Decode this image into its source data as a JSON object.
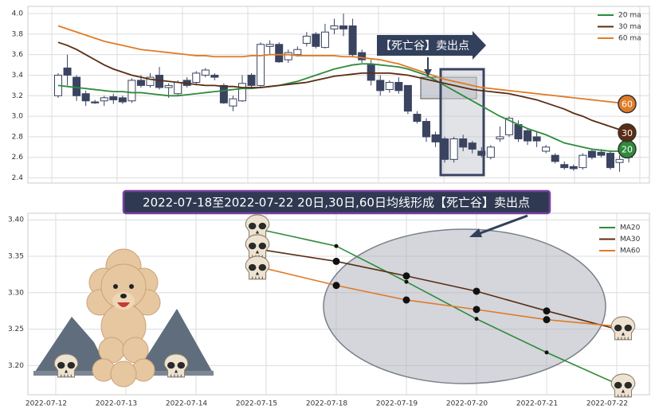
{
  "chart_data": [
    {
      "type": "candlestick",
      "open": [
        3.2,
        3.47,
        3.38,
        3.22,
        3.14,
        3.15,
        3.19,
        3.18,
        3.15,
        3.35,
        3.3,
        3.4,
        3.28,
        3.22,
        3.35,
        3.33,
        3.4,
        3.4,
        3.3,
        3.1,
        3.15,
        3.4,
        3.3,
        3.68,
        3.7,
        3.55,
        3.6,
        3.71,
        3.8,
        3.67,
        3.85,
        3.88,
        3.88,
        3.62,
        3.5,
        3.35,
        3.26,
        3.33,
        3.3,
        3.02,
        2.95,
        2.82,
        2.78,
        2.58,
        2.78,
        2.74,
        2.66,
        2.6,
        2.78,
        2.82,
        2.92,
        2.86,
        2.8,
        2.66,
        2.62,
        2.53,
        2.51,
        2.5,
        2.66,
        2.65,
        2.64,
        2.55,
        2.6
      ],
      "high": [
        3.42,
        3.6,
        3.4,
        3.25,
        3.16,
        3.2,
        3.22,
        3.2,
        3.37,
        3.4,
        3.42,
        3.48,
        3.32,
        3.35,
        3.38,
        3.44,
        3.47,
        3.42,
        3.32,
        3.2,
        3.4,
        3.42,
        3.72,
        3.74,
        3.72,
        3.65,
        3.68,
        3.82,
        3.82,
        3.9,
        3.95,
        4.0,
        3.95,
        3.65,
        3.55,
        3.4,
        3.35,
        3.38,
        3.3,
        3.05,
        2.98,
        2.85,
        2.8,
        2.8,
        2.82,
        2.76,
        2.7,
        2.72,
        2.9,
        3.0,
        2.96,
        2.88,
        2.85,
        2.72,
        2.64,
        2.56,
        2.53,
        2.64,
        2.68,
        2.68,
        2.66,
        2.62,
        2.72
      ],
      "low": [
        3.18,
        3.3,
        3.15,
        3.1,
        3.12,
        3.1,
        3.12,
        3.12,
        3.13,
        3.28,
        3.28,
        3.26,
        3.18,
        3.2,
        3.28,
        3.3,
        3.38,
        3.35,
        3.12,
        3.05,
        3.14,
        3.28,
        3.28,
        3.6,
        3.52,
        3.52,
        3.58,
        3.68,
        3.66,
        3.66,
        3.8,
        3.78,
        3.58,
        3.52,
        3.3,
        3.2,
        3.23,
        3.22,
        3.02,
        2.93,
        2.75,
        2.7,
        2.55,
        2.55,
        2.66,
        2.64,
        2.6,
        2.58,
        2.75,
        2.8,
        2.75,
        2.72,
        2.7,
        2.64,
        2.54,
        2.48,
        2.47,
        2.48,
        2.58,
        2.6,
        2.48,
        2.46,
        2.55
      ],
      "close": [
        3.4,
        3.4,
        3.2,
        3.15,
        3.13,
        3.18,
        3.16,
        3.14,
        3.35,
        3.3,
        3.38,
        3.28,
        3.3,
        3.33,
        3.3,
        3.42,
        3.45,
        3.38,
        3.13,
        3.17,
        3.32,
        3.3,
        3.7,
        3.7,
        3.53,
        3.62,
        3.65,
        3.78,
        3.68,
        3.82,
        3.88,
        3.85,
        3.6,
        3.55,
        3.35,
        3.25,
        3.33,
        3.25,
        3.05,
        2.95,
        2.8,
        2.75,
        2.58,
        2.78,
        2.7,
        2.68,
        2.62,
        2.7,
        2.8,
        2.98,
        2.78,
        2.76,
        2.76,
        2.7,
        2.56,
        2.5,
        2.49,
        2.62,
        2.6,
        2.62,
        2.5,
        2.58,
        2.7
      ],
      "series": [
        {
          "name": "20 ma",
          "badge": "20",
          "color": "#2e8b3a",
          "values": [
            3.3,
            3.29,
            3.28,
            3.27,
            3.26,
            3.25,
            3.24,
            3.24,
            3.23,
            3.23,
            3.22,
            3.21,
            3.2,
            3.2,
            3.21,
            3.22,
            3.23,
            3.24,
            3.25,
            3.26,
            3.27,
            3.27,
            3.28,
            3.29,
            3.3,
            3.32,
            3.34,
            3.37,
            3.4,
            3.43,
            3.46,
            3.48,
            3.5,
            3.51,
            3.51,
            3.5,
            3.49,
            3.48,
            3.46,
            3.43,
            3.4,
            3.35,
            3.3,
            3.25,
            3.2,
            3.15,
            3.1,
            3.05,
            3.0,
            2.96,
            2.92,
            2.88,
            2.85,
            2.82,
            2.78,
            2.74,
            2.72,
            2.7,
            2.68,
            2.67,
            2.66,
            2.66,
            2.68
          ]
        },
        {
          "name": "30 ma",
          "badge": "30",
          "color": "#5a2d14",
          "values": [
            3.72,
            3.69,
            3.65,
            3.6,
            3.55,
            3.5,
            3.46,
            3.43,
            3.4,
            3.38,
            3.36,
            3.35,
            3.34,
            3.33,
            3.32,
            3.31,
            3.3,
            3.3,
            3.29,
            3.29,
            3.28,
            3.28,
            3.28,
            3.29,
            3.3,
            3.31,
            3.32,
            3.33,
            3.35,
            3.37,
            3.39,
            3.4,
            3.41,
            3.42,
            3.42,
            3.42,
            3.42,
            3.41,
            3.4,
            3.38,
            3.36,
            3.34,
            3.32,
            3.3,
            3.28,
            3.26,
            3.25,
            3.24,
            3.23,
            3.22,
            3.2,
            3.18,
            3.16,
            3.13,
            3.1,
            3.07,
            3.03,
            3.0,
            2.96,
            2.93,
            2.9,
            2.87,
            2.84
          ]
        },
        {
          "name": "60 ma",
          "badge": "60",
          "color": "#e07b28",
          "values": [
            3.88,
            3.85,
            3.82,
            3.79,
            3.76,
            3.73,
            3.71,
            3.69,
            3.67,
            3.65,
            3.64,
            3.63,
            3.62,
            3.61,
            3.6,
            3.59,
            3.59,
            3.58,
            3.58,
            3.58,
            3.58,
            3.59,
            3.59,
            3.6,
            3.6,
            3.6,
            3.59,
            3.59,
            3.59,
            3.59,
            3.59,
            3.58,
            3.58,
            3.57,
            3.56,
            3.55,
            3.53,
            3.51,
            3.48,
            3.45,
            3.42,
            3.39,
            3.36,
            3.34,
            3.32,
            3.3,
            3.28,
            3.27,
            3.26,
            3.25,
            3.24,
            3.23,
            3.22,
            3.21,
            3.2,
            3.19,
            3.18,
            3.17,
            3.16,
            3.15,
            3.14,
            3.13,
            3.12
          ]
        }
      ],
      "up_color": "#ffffff",
      "down_color": "#3a4461",
      "annotation": "【死亡谷】卖出点",
      "ylim": [
        2.35,
        4.07
      ],
      "yticks": [
        2.4,
        2.6,
        2.8,
        {
          "value": 3.0,
          "label": "3.0"
        },
        3.2,
        3.4,
        3.6,
        3.8,
        {
          "value": 4.0,
          "label": "4.0"
        }
      ],
      "grid": true,
      "legend": "upper right"
    },
    {
      "type": "line",
      "title": "2022-07-18至2022-07-22 20日,30日,60日均线形成【死亡谷】卖出点",
      "categories": [
        "2022-07-12",
        "2022-07-13",
        "2022-07-14",
        "2022-07-15",
        "2022-07-18",
        "2022-07-19",
        "2022-07-20",
        "2022-07-21",
        "2022-07-22"
      ],
      "series": [
        {
          "name": "MA20",
          "color": "#2e8b3a",
          "values": [
            null,
            null,
            null,
            3.385,
            3.364,
            3.315,
            3.264,
            3.218,
            3.175
          ]
        },
        {
          "name": "MA30",
          "color": "#5a2d14",
          "values": [
            null,
            null,
            null,
            3.358,
            3.343,
            3.323,
            3.302,
            3.275,
            3.25
          ]
        },
        {
          "name": "MA60",
          "color": "#e07b28",
          "values": [
            null,
            null,
            null,
            3.333,
            3.31,
            3.29,
            3.277,
            3.263,
            3.254
          ]
        }
      ],
      "ylim": [
        3.16,
        3.409
      ],
      "yticks": [
        {
          "value": 3.2,
          "label": "3.20"
        },
        3.25,
        {
          "value": 3.3,
          "label": "3.30"
        },
        3.35,
        {
          "value": 3.4,
          "label": "3.40"
        }
      ],
      "grid": true,
      "legend": "upper right"
    }
  ]
}
